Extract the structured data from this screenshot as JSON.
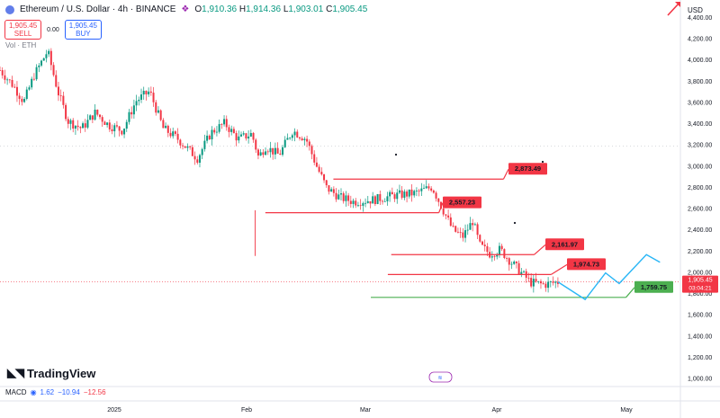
{
  "header": {
    "symbol": "Ethereum / U.S. Dollar · 4h · BINANCE",
    "ohlc": [
      {
        "k": "O",
        "v": "1,910.36"
      },
      {
        "k": "H",
        "v": "1,914.36"
      },
      {
        "k": "L",
        "v": "1,903.01"
      },
      {
        "k": "C",
        "v": "1,905.45"
      }
    ]
  },
  "trade": {
    "sell_price": "1,905.45",
    "sell_label": "SELL",
    "spread": "0.00",
    "buy_price": "1,905.45",
    "buy_label": "BUY"
  },
  "volume_label": "Vol · ETH",
  "currency": "USD",
  "branding": "TradingView",
  "macd": {
    "label": "MACD",
    "v1": "1.62",
    "v2": "−10.94",
    "v3": "−12.56"
  },
  "colors": {
    "candle_up": "#089981",
    "candle_down": "#f23645",
    "level_red": "#f23645",
    "level_green": "#4caf50",
    "projection": "#29b6f6"
  },
  "chart_data": {
    "type": "candlestick",
    "y_axis_ticks": [
      1000,
      1200,
      1400,
      1600,
      1800,
      2000,
      2200,
      2400,
      2600,
      2800,
      3000,
      3200,
      3400,
      3600,
      3800,
      4000,
      4200,
      4400
    ],
    "y_tick_labels": [
      "1,000.00",
      "1,200.00",
      "1,400.00",
      "1,600.00",
      "1,800.00",
      "2,000.00",
      "2,200.00",
      "2,400.00",
      "2,600.00",
      "2,800.00",
      "3,000.00",
      "3,200.00",
      "3,400.00",
      "3,600.00",
      "3,800.00",
      "4,000.00",
      "4,200.00",
      "4,400.00"
    ],
    "ylim": [
      920,
      4560
    ],
    "x_tick_labels": [
      "2025",
      "Feb",
      "Mar",
      "Apr",
      "May"
    ],
    "price_path": [
      {
        "t": 0,
        "p": 3900
      },
      {
        "t": 0.02,
        "p": 3750
      },
      {
        "t": 0.035,
        "p": 3600
      },
      {
        "t": 0.05,
        "p": 3850
      },
      {
        "t": 0.07,
        "p": 4080
      },
      {
        "t": 0.085,
        "p": 3700
      },
      {
        "t": 0.1,
        "p": 3420
      },
      {
        "t": 0.12,
        "p": 3350
      },
      {
        "t": 0.14,
        "p": 3500
      },
      {
        "t": 0.16,
        "p": 3380
      },
      {
        "t": 0.18,
        "p": 3330
      },
      {
        "t": 0.2,
        "p": 3610
      },
      {
        "t": 0.22,
        "p": 3700
      },
      {
        "t": 0.24,
        "p": 3350
      },
      {
        "t": 0.26,
        "p": 3260
      },
      {
        "t": 0.29,
        "p": 3070
      },
      {
        "t": 0.31,
        "p": 3310
      },
      {
        "t": 0.33,
        "p": 3400
      },
      {
        "t": 0.35,
        "p": 3250
      },
      {
        "t": 0.37,
        "p": 3300
      },
      {
        "t": 0.38,
        "p": 3080
      },
      {
        "t": 0.39,
        "p": 3180
      },
      {
        "t": 0.41,
        "p": 3100
      },
      {
        "t": 0.43,
        "p": 3330
      },
      {
        "t": 0.45,
        "p": 3250
      },
      {
        "t": 0.465,
        "p": 3000
      },
      {
        "t": 0.48,
        "p": 2790
      },
      {
        "t": 0.5,
        "p": 2700
      },
      {
        "t": 0.52,
        "p": 2660
      },
      {
        "t": 0.55,
        "p": 2680
      },
      {
        "t": 0.58,
        "p": 2720
      },
      {
        "t": 0.61,
        "p": 2740
      },
      {
        "t": 0.635,
        "p": 2800
      },
      {
        "t": 0.65,
        "p": 2600
      },
      {
        "t": 0.665,
        "p": 2400
      },
      {
        "t": 0.68,
        "p": 2330
      },
      {
        "t": 0.695,
        "p": 2480
      },
      {
        "t": 0.705,
        "p": 2250
      },
      {
        "t": 0.72,
        "p": 2170
      },
      {
        "t": 0.735,
        "p": 2210
      },
      {
        "t": 0.75,
        "p": 2100
      },
      {
        "t": 0.765,
        "p": 2000
      },
      {
        "t": 0.78,
        "p": 1900
      },
      {
        "t": 0.8,
        "p": 1880
      },
      {
        "t": 0.82,
        "p": 1905
      }
    ],
    "projection": [
      {
        "t": 0.82,
        "p": 1905
      },
      {
        "t": 0.86,
        "p": 1740
      },
      {
        "t": 0.89,
        "p": 1990
      },
      {
        "t": 0.91,
        "p": 1890
      },
      {
        "t": 0.95,
        "p": 2161.97
      },
      {
        "t": 0.97,
        "p": 2090
      }
    ],
    "levels": [
      {
        "label": "2,873.49",
        "value": 2873.49,
        "color": "red"
      },
      {
        "label": "2,557.23",
        "value": 2557.23,
        "color": "red"
      },
      {
        "label": "2,161.97",
        "value": 2161.97,
        "color": "red"
      },
      {
        "label": "1,974.73",
        "value": 1974.73,
        "color": "red"
      },
      {
        "label": "1,759.75",
        "value": 1759.75,
        "color": "green"
      }
    ],
    "current_price": {
      "label": "1,905.45",
      "countdown": "03:04:21",
      "value": 1905.45
    }
  }
}
